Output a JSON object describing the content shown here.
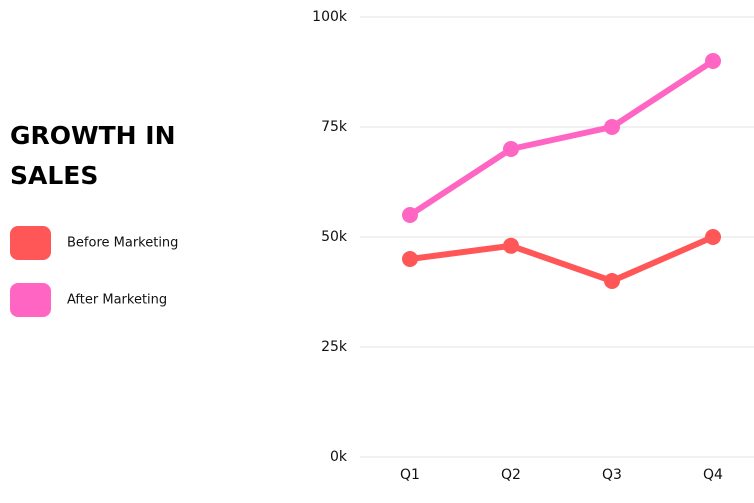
{
  "chart_data": {
    "type": "line",
    "title": "GROWTH IN SALES",
    "categories": [
      "Q1",
      "Q2",
      "Q3",
      "Q4"
    ],
    "series": [
      {
        "name": "Before Marketing",
        "color": "#ff5757",
        "values": [
          45000,
          48000,
          40000,
          50000
        ]
      },
      {
        "name": "After Marketing",
        "color": "#ff66c4",
        "values": [
          55000,
          70000,
          75000,
          90000
        ]
      }
    ],
    "ylim": [
      0,
      100000
    ],
    "yticks": [
      {
        "value": 0,
        "label": "0k"
      },
      {
        "value": 25000,
        "label": "25k"
      },
      {
        "value": 50000,
        "label": "50k"
      },
      {
        "value": 75000,
        "label": "75k"
      },
      {
        "value": 100000,
        "label": "100k"
      }
    ],
    "grid": true,
    "legend": "left"
  }
}
